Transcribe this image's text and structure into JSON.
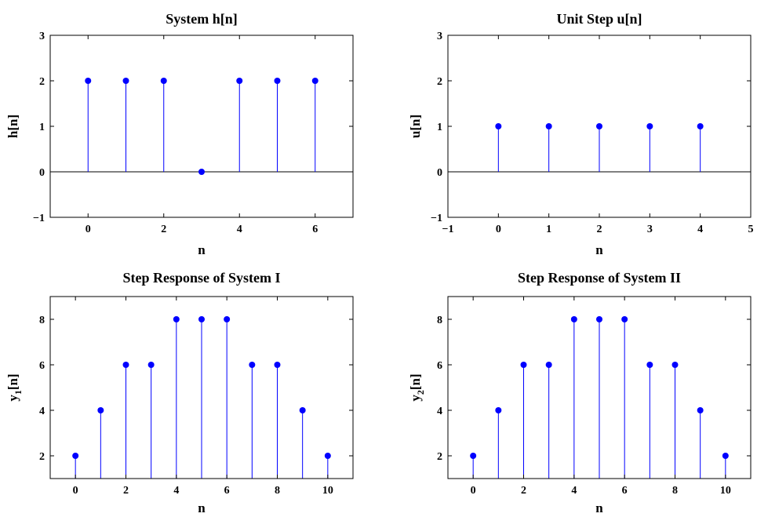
{
  "figure": {
    "background": "#ffffff",
    "stem_color": "#0000ff",
    "baseline_color": "#000000"
  },
  "chart_data": [
    {
      "type": "stem",
      "title": "System h[n]",
      "xlabel": "n",
      "ylabel": "h[n]",
      "xlim": [
        -1,
        7
      ],
      "ylim": [
        -1,
        3
      ],
      "xticks": [
        0,
        2,
        4,
        6
      ],
      "yticks": [
        -1,
        0,
        1,
        2,
        3
      ],
      "grid": false,
      "series": [
        {
          "x": [
            0,
            1,
            2,
            3,
            4,
            5,
            6
          ],
          "values": [
            2,
            2,
            2,
            0,
            2,
            2,
            2
          ]
        }
      ]
    },
    {
      "type": "stem",
      "title": "Unit Step u[n]",
      "xlabel": "n",
      "ylabel": "u[n]",
      "xlim": [
        -1,
        5
      ],
      "ylim": [
        -1,
        3
      ],
      "xticks": [
        -1,
        0,
        1,
        2,
        3,
        4,
        5
      ],
      "yticks": [
        -1,
        0,
        1,
        2,
        3
      ],
      "grid": false,
      "series": [
        {
          "x": [
            0,
            1,
            2,
            3,
            4
          ],
          "values": [
            1,
            1,
            1,
            1,
            1
          ]
        }
      ]
    },
    {
      "type": "stem",
      "title": "Step Response of System I",
      "xlabel": "n",
      "ylabel": "y1[n]",
      "xlim": [
        -1,
        11
      ],
      "ylim": [
        1,
        9
      ],
      "xticks": [
        0,
        2,
        4,
        6,
        8,
        10
      ],
      "yticks": [
        2,
        4,
        6,
        8
      ],
      "grid": false,
      "series": [
        {
          "x": [
            0,
            1,
            2,
            3,
            4,
            5,
            6,
            7,
            8,
            9,
            10
          ],
          "values": [
            2,
            4,
            6,
            6,
            8,
            8,
            8,
            6,
            6,
            4,
            2
          ]
        }
      ]
    },
    {
      "type": "stem",
      "title": "Step Response of System II",
      "xlabel": "n",
      "ylabel": "y2[n]",
      "xlim": [
        -1,
        11
      ],
      "ylim": [
        1,
        9
      ],
      "xticks": [
        0,
        2,
        4,
        6,
        8,
        10
      ],
      "yticks": [
        2,
        4,
        6,
        8
      ],
      "grid": false,
      "series": [
        {
          "x": [
            0,
            1,
            2,
            3,
            4,
            5,
            6,
            7,
            8,
            9,
            10
          ],
          "values": [
            2,
            4,
            6,
            6,
            8,
            8,
            8,
            6,
            6,
            4,
            2
          ]
        }
      ]
    }
  ]
}
